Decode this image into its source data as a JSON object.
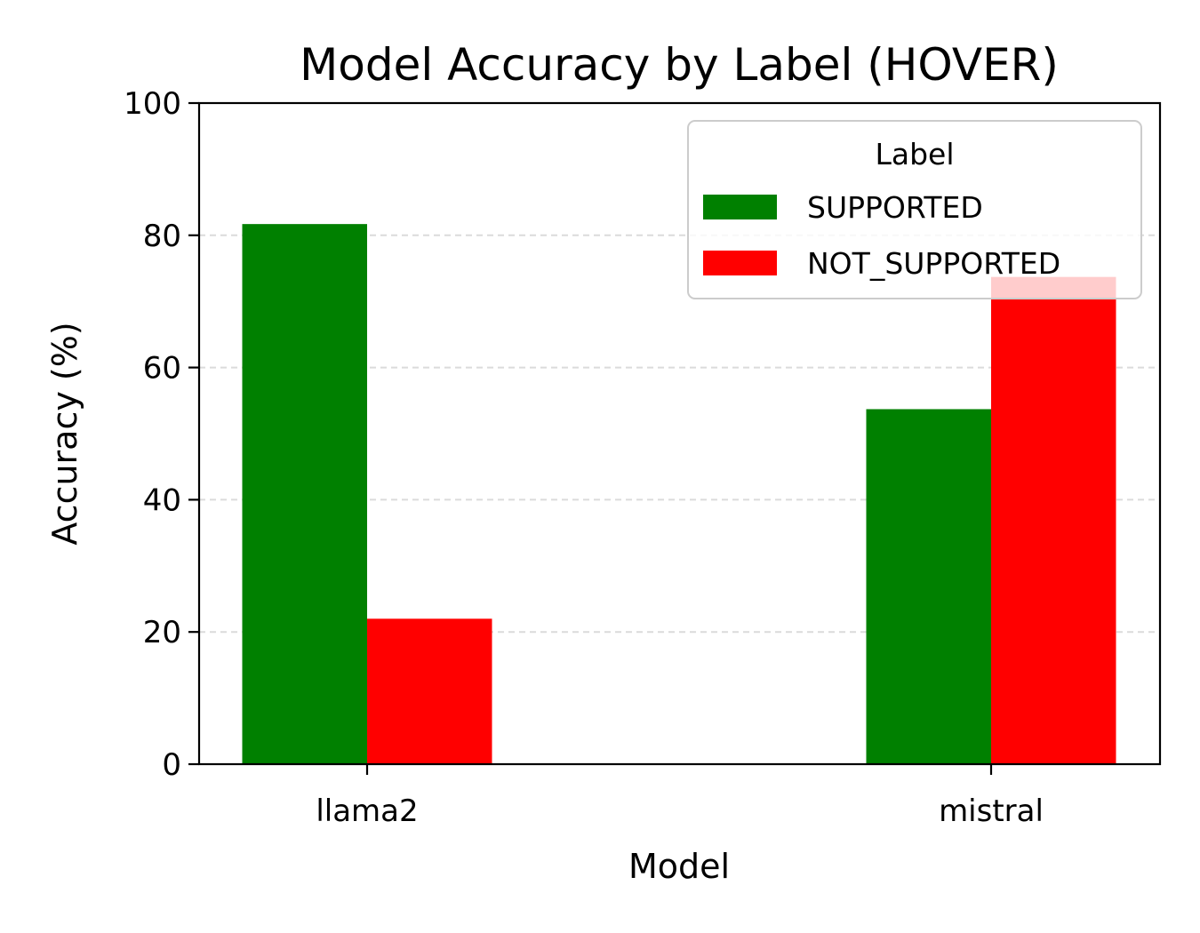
{
  "chart_data": {
    "type": "bar",
    "title": "Model Accuracy by Label (HOVER)",
    "xlabel": "Model",
    "ylabel": "Accuracy (%)",
    "categories": [
      "llama2",
      "mistral"
    ],
    "series": [
      {
        "name": "SUPPORTED",
        "color": "#008000",
        "values": [
          81.7,
          53.7
        ]
      },
      {
        "name": "NOT_SUPPORTED",
        "color": "#ff0000",
        "values": [
          22.0,
          73.7
        ]
      }
    ],
    "ylim": [
      0,
      100
    ],
    "yticks": [
      0,
      20,
      40,
      60,
      80,
      100
    ],
    "grid": "y-dashed",
    "legend": {
      "title": "Label",
      "position": "top-right"
    }
  }
}
